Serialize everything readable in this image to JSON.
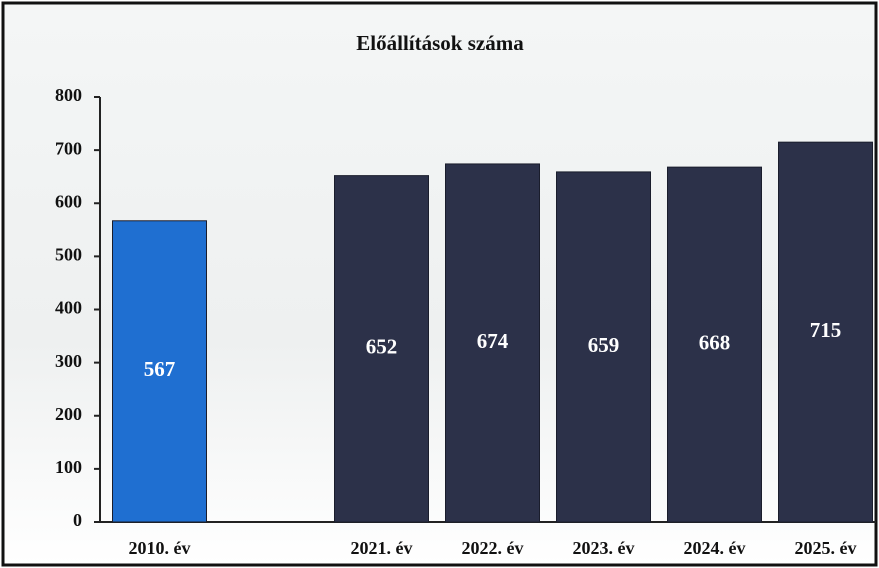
{
  "chart_data": {
    "type": "bar",
    "title": "Előállítások száma",
    "categories": [
      "2010. év",
      null,
      "2021. év",
      "2022. év",
      "2023. év",
      "2024. év",
      "2025. év"
    ],
    "values": [
      567,
      null,
      652,
      674,
      659,
      668,
      715
    ],
    "colors": [
      "#1f6fd1",
      null,
      "#2c3149",
      "#2c3149",
      "#2c3149",
      "#2c3149",
      "#2c3149"
    ],
    "ylim": [
      0,
      800
    ],
    "yticks": [
      0,
      100,
      200,
      300,
      400,
      500,
      600,
      700,
      800
    ]
  }
}
